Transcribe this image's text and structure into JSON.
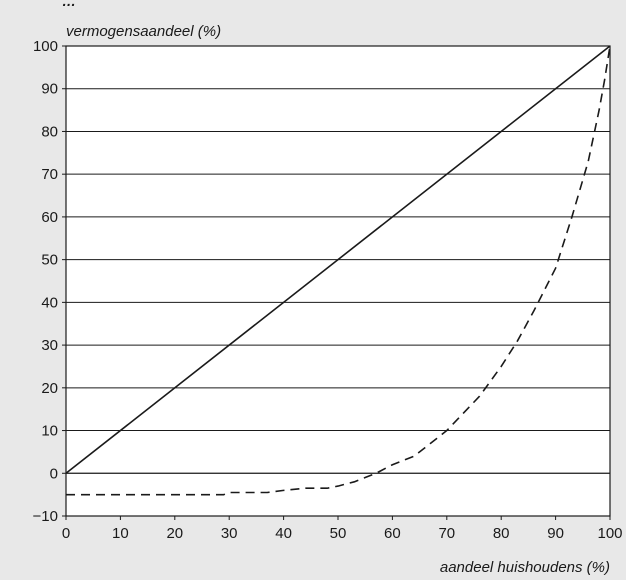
{
  "header_text": "…",
  "chart_data": {
    "type": "line",
    "title": "",
    "xlabel": "aandeel huishoudens (%)",
    "ylabel": "vermogensaandeel (%)",
    "xlim": [
      0,
      100
    ],
    "ylim": [
      -10,
      100
    ],
    "x_ticks": [
      0,
      10,
      20,
      30,
      40,
      50,
      60,
      70,
      80,
      90,
      100
    ],
    "y_ticks": [
      -10,
      0,
      10,
      20,
      30,
      40,
      50,
      60,
      70,
      80,
      90,
      100
    ],
    "grid": "horizontal",
    "background": "#ffffff",
    "series": [
      {
        "style": "solid",
        "color": "#1a1a1a",
        "points": [
          [
            0,
            0
          ],
          [
            100,
            100
          ]
        ]
      },
      {
        "style": "dashed",
        "color": "#1a1a1a",
        "points": [
          [
            0,
            -5
          ],
          [
            10,
            -5
          ],
          [
            20,
            -5
          ],
          [
            29,
            -5
          ],
          [
            30,
            -4.5
          ],
          [
            37,
            -4.5
          ],
          [
            40,
            -4
          ],
          [
            44,
            -3.5
          ],
          [
            48,
            -3.5
          ],
          [
            50,
            -3
          ],
          [
            53,
            -2
          ],
          [
            55,
            -1
          ],
          [
            57,
            0
          ],
          [
            60,
            2
          ],
          [
            64,
            4
          ],
          [
            67,
            7
          ],
          [
            70,
            10
          ],
          [
            73,
            14
          ],
          [
            76,
            18
          ],
          [
            80,
            25
          ],
          [
            83,
            31
          ],
          [
            86,
            38
          ],
          [
            90,
            48
          ],
          [
            93,
            60
          ],
          [
            96,
            73
          ],
          [
            98,
            85
          ],
          [
            99,
            92
          ],
          [
            100,
            100
          ]
        ]
      }
    ]
  }
}
